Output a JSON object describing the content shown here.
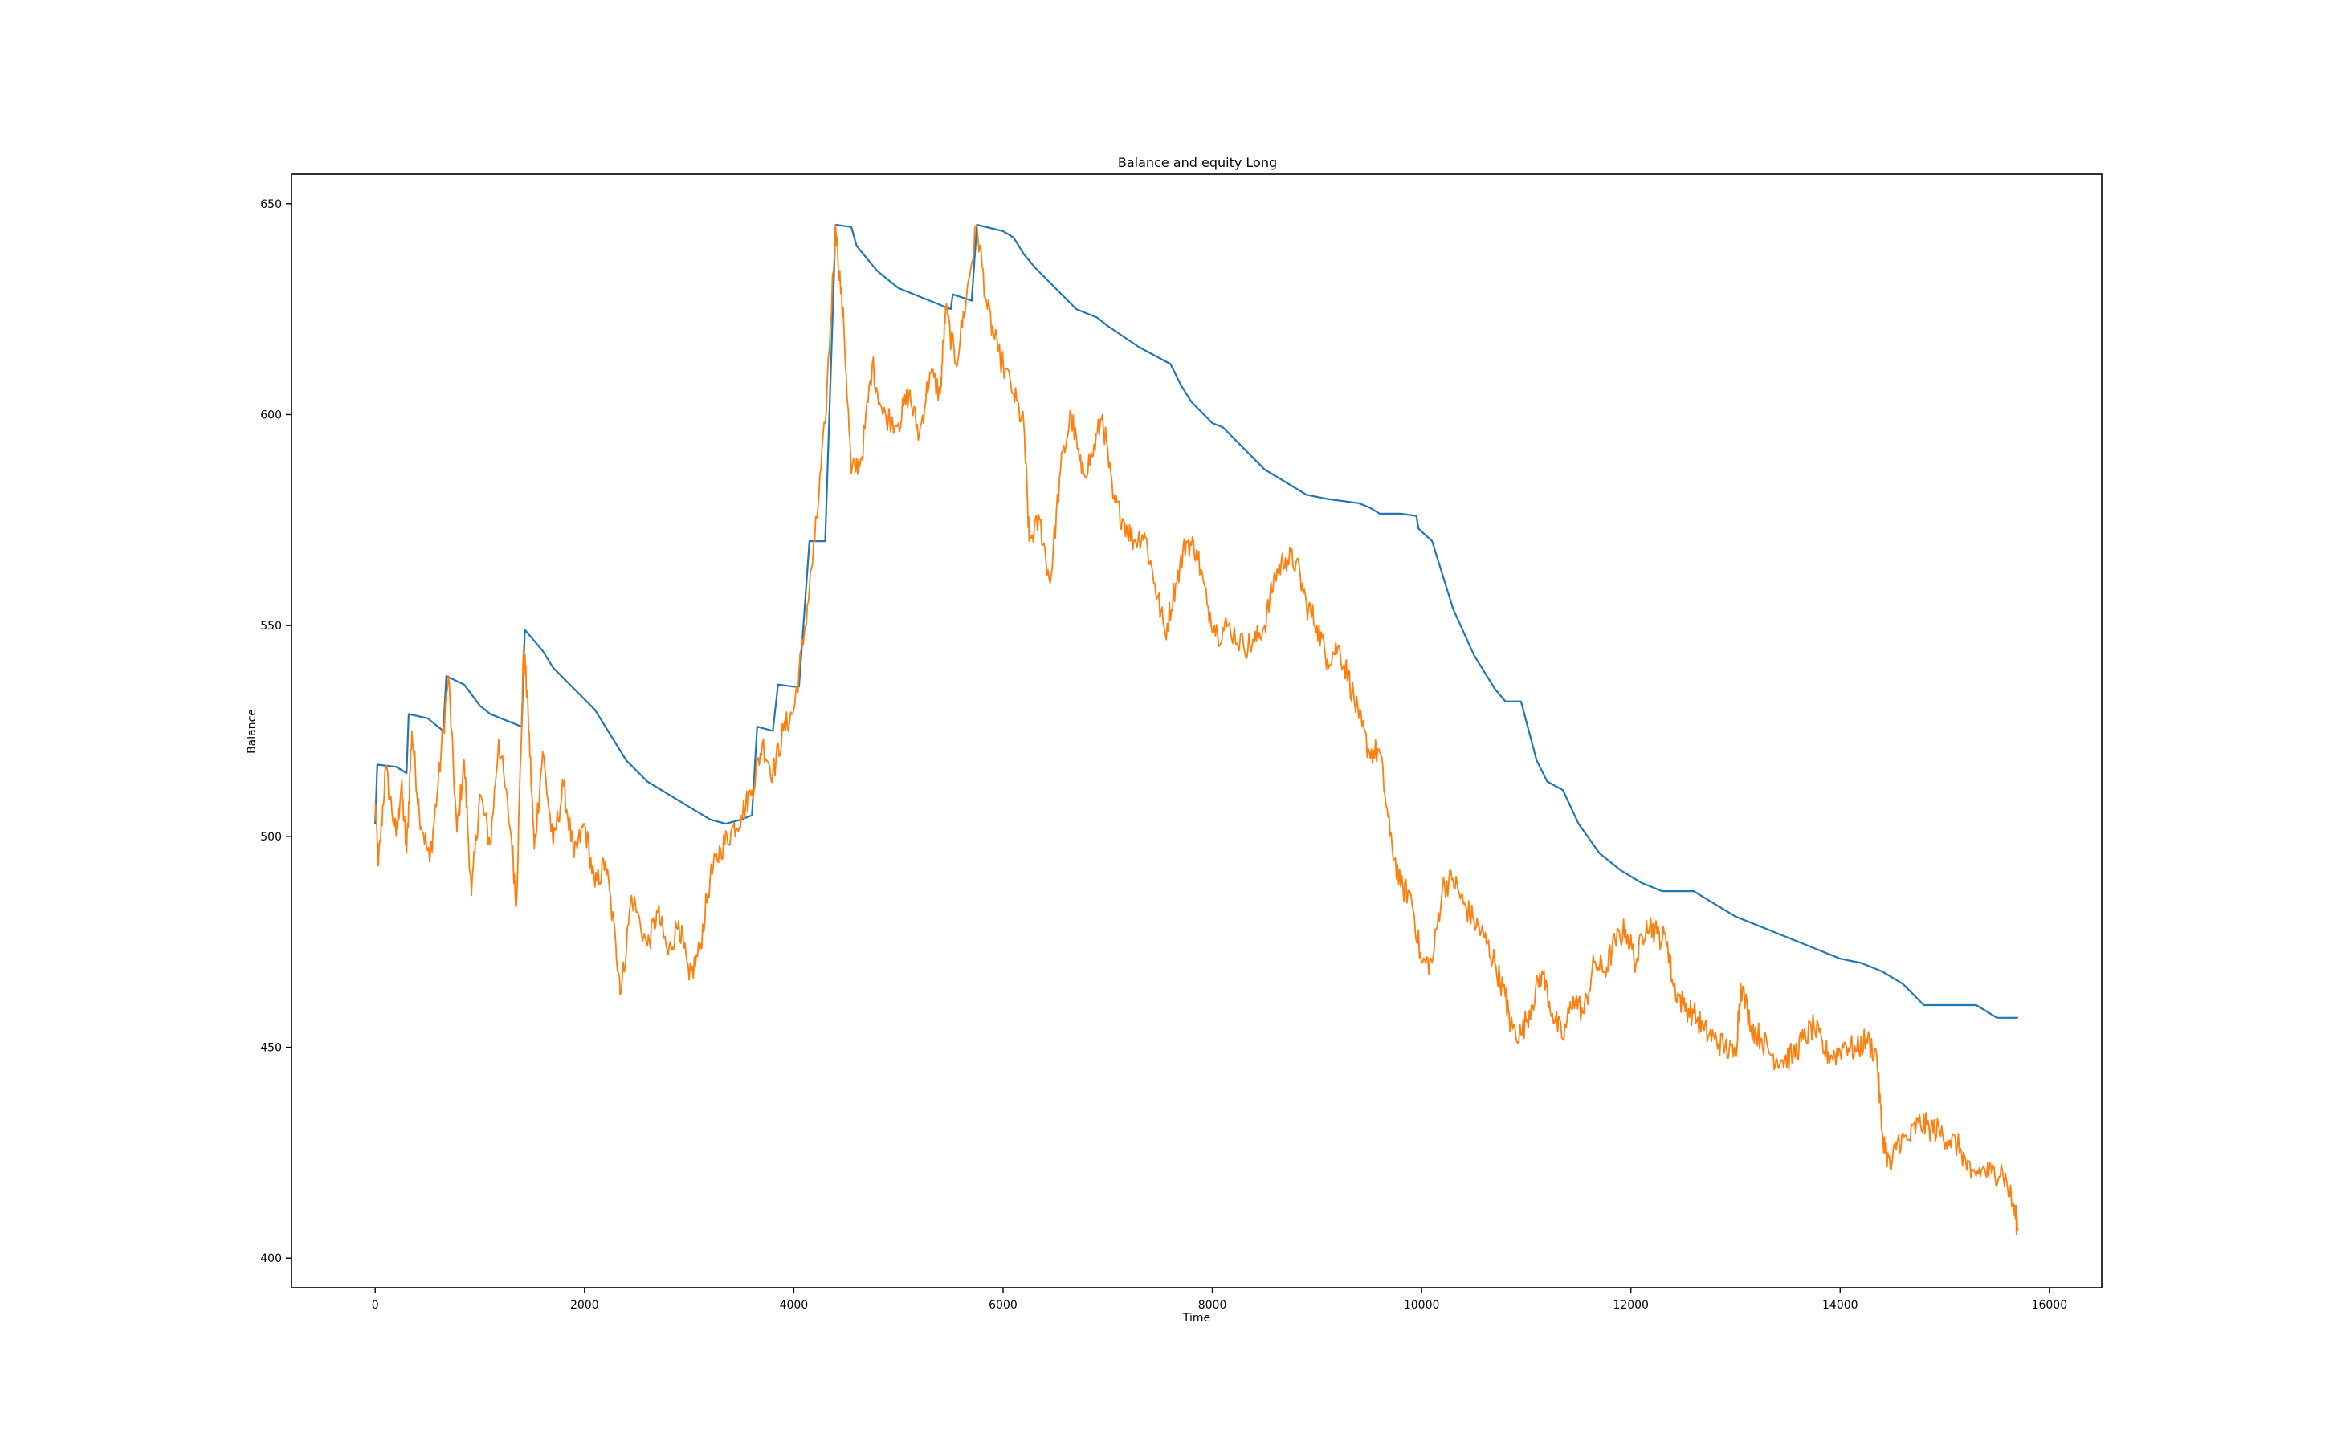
{
  "chart_data": {
    "type": "line",
    "title": "Balance and equity Long",
    "xlabel": "Time",
    "ylabel": "Balance",
    "xlim": [
      -800,
      16500
    ],
    "ylim": [
      393,
      657
    ],
    "x_ticks": [
      0,
      2000,
      4000,
      6000,
      8000,
      10000,
      12000,
      14000,
      16000
    ],
    "y_ticks": [
      400,
      450,
      500,
      550,
      600,
      650
    ],
    "grid": false,
    "legend": "none",
    "series": [
      {
        "color": "#1f77b4",
        "points": [
          [
            0,
            503
          ],
          [
            20,
            517
          ],
          [
            200,
            516.5
          ],
          [
            300,
            515
          ],
          [
            320,
            529
          ],
          [
            500,
            528
          ],
          [
            650,
            525
          ],
          [
            680,
            538
          ],
          [
            850,
            536
          ],
          [
            1000,
            531
          ],
          [
            1100,
            529
          ],
          [
            1400,
            526
          ],
          [
            1430,
            549
          ],
          [
            1600,
            544
          ],
          [
            1700,
            540
          ],
          [
            1900,
            535
          ],
          [
            2100,
            530
          ],
          [
            2250,
            524
          ],
          [
            2400,
            518
          ],
          [
            2600,
            513
          ],
          [
            2800,
            510
          ],
          [
            3000,
            507
          ],
          [
            3200,
            504
          ],
          [
            3350,
            503
          ],
          [
            3500,
            504
          ],
          [
            3600,
            505
          ],
          [
            3650,
            526
          ],
          [
            3800,
            525
          ],
          [
            3850,
            536
          ],
          [
            4000,
            535.5
          ],
          [
            4050,
            535.5
          ],
          [
            4150,
            570
          ],
          [
            4300,
            570
          ],
          [
            4400,
            645
          ],
          [
            4550,
            644.5
          ],
          [
            4600,
            640
          ],
          [
            4700,
            637
          ],
          [
            4800,
            634
          ],
          [
            5000,
            630
          ],
          [
            5200,
            628
          ],
          [
            5400,
            626
          ],
          [
            5500,
            625
          ],
          [
            5520,
            628.5
          ],
          [
            5700,
            627
          ],
          [
            5750,
            645
          ],
          [
            6000,
            643.5
          ],
          [
            6100,
            642
          ],
          [
            6200,
            638
          ],
          [
            6300,
            635
          ],
          [
            6500,
            630
          ],
          [
            6700,
            625
          ],
          [
            6900,
            623
          ],
          [
            7000,
            621
          ],
          [
            7300,
            616
          ],
          [
            7600,
            612
          ],
          [
            7700,
            607
          ],
          [
            7800,
            603
          ],
          [
            8000,
            598
          ],
          [
            8100,
            597
          ],
          [
            8300,
            592
          ],
          [
            8500,
            587
          ],
          [
            8700,
            584
          ],
          [
            8900,
            581
          ],
          [
            9100,
            580
          ],
          [
            9400,
            579
          ],
          [
            9500,
            578
          ],
          [
            9600,
            576.5
          ],
          [
            9800,
            576.5
          ],
          [
            9950,
            576
          ],
          [
            9970,
            573
          ],
          [
            10100,
            570
          ],
          [
            10300,
            554
          ],
          [
            10500,
            543
          ],
          [
            10600,
            539
          ],
          [
            10700,
            535
          ],
          [
            10800,
            532
          ],
          [
            10950,
            532
          ],
          [
            11100,
            518
          ],
          [
            11200,
            513
          ],
          [
            11350,
            511
          ],
          [
            11500,
            503
          ],
          [
            11700,
            496
          ],
          [
            11900,
            492
          ],
          [
            12100,
            489
          ],
          [
            12300,
            487
          ],
          [
            12600,
            487
          ],
          [
            12800,
            484
          ],
          [
            13000,
            481
          ],
          [
            13300,
            478
          ],
          [
            13500,
            476
          ],
          [
            13700,
            474
          ],
          [
            14000,
            471
          ],
          [
            14200,
            470
          ],
          [
            14400,
            468
          ],
          [
            14600,
            465
          ],
          [
            14800,
            460
          ],
          [
            15000,
            460
          ],
          [
            15300,
            460
          ],
          [
            15500,
            457
          ],
          [
            15700,
            457
          ]
        ]
      },
      {
        "color": "#ff7f0e",
        "points": [
          [
            0,
            508
          ],
          [
            30,
            493
          ],
          [
            100,
            516
          ],
          [
            200,
            500
          ],
          [
            250,
            512
          ],
          [
            300,
            496
          ],
          [
            350,
            525
          ],
          [
            420,
            506
          ],
          [
            520,
            494
          ],
          [
            600,
            512
          ],
          [
            700,
            538
          ],
          [
            780,
            501
          ],
          [
            850,
            518
          ],
          [
            920,
            486
          ],
          [
            1000,
            510
          ],
          [
            1100,
            498
          ],
          [
            1180,
            523
          ],
          [
            1300,
            500
          ],
          [
            1350,
            484
          ],
          [
            1420,
            545
          ],
          [
            1460,
            530
          ],
          [
            1520,
            497
          ],
          [
            1600,
            520
          ],
          [
            1700,
            498
          ],
          [
            1800,
            512
          ],
          [
            1900,
            495
          ],
          [
            2000,
            503
          ],
          [
            2100,
            488
          ],
          [
            2200,
            494
          ],
          [
            2300,
            474
          ],
          [
            2350,
            463
          ],
          [
            2450,
            486
          ],
          [
            2600,
            474
          ],
          [
            2700,
            482
          ],
          [
            2800,
            472
          ],
          [
            2900,
            480
          ],
          [
            3000,
            466
          ],
          [
            3100,
            473
          ],
          [
            3200,
            490
          ],
          [
            3300,
            497
          ],
          [
            3400,
            501
          ],
          [
            3500,
            505
          ],
          [
            3600,
            511
          ],
          [
            3700,
            522
          ],
          [
            3800,
            515
          ],
          [
            3900,
            525
          ],
          [
            4000,
            530
          ],
          [
            4100,
            548
          ],
          [
            4200,
            570
          ],
          [
            4300,
            598
          ],
          [
            4400,
            645
          ],
          [
            4480,
            620
          ],
          [
            4550,
            586
          ],
          [
            4650,
            590
          ],
          [
            4750,
            612
          ],
          [
            4850,
            600
          ],
          [
            5000,
            598
          ],
          [
            5100,
            605
          ],
          [
            5200,
            595
          ],
          [
            5300,
            610
          ],
          [
            5400,
            605
          ],
          [
            5450,
            625
          ],
          [
            5550,
            612
          ],
          [
            5650,
            628
          ],
          [
            5750,
            645
          ],
          [
            5850,
            625
          ],
          [
            5950,
            615
          ],
          [
            6100,
            605
          ],
          [
            6200,
            597
          ],
          [
            6250,
            570
          ],
          [
            6350,
            575
          ],
          [
            6450,
            560
          ],
          [
            6550,
            587
          ],
          [
            6650,
            600
          ],
          [
            6750,
            586
          ],
          [
            6850,
            590
          ],
          [
            6950,
            600
          ],
          [
            7050,
            580
          ],
          [
            7150,
            575
          ],
          [
            7250,
            570
          ],
          [
            7350,
            572
          ],
          [
            7450,
            560
          ],
          [
            7550,
            548
          ],
          [
            7650,
            560
          ],
          [
            7750,
            570
          ],
          [
            7850,
            568
          ],
          [
            7950,
            555
          ],
          [
            8050,
            548
          ],
          [
            8150,
            550
          ],
          [
            8300,
            545
          ],
          [
            8400,
            546
          ],
          [
            8500,
            550
          ],
          [
            8600,
            562
          ],
          [
            8700,
            566
          ],
          [
            8800,
            565
          ],
          [
            8900,
            555
          ],
          [
            9000,
            550
          ],
          [
            9100,
            542
          ],
          [
            9200,
            545
          ],
          [
            9300,
            538
          ],
          [
            9400,
            528
          ],
          [
            9500,
            520
          ],
          [
            9600,
            520
          ],
          [
            9700,
            500
          ],
          [
            9800,
            488
          ],
          [
            9900,
            486
          ],
          [
            10000,
            470
          ],
          [
            10100,
            470
          ],
          [
            10200,
            488
          ],
          [
            10300,
            490
          ],
          [
            10400,
            484
          ],
          [
            10500,
            480
          ],
          [
            10600,
            476
          ],
          [
            10700,
            470
          ],
          [
            10800,
            462
          ],
          [
            10850,
            455
          ],
          [
            10950,
            453
          ],
          [
            11050,
            460
          ],
          [
            11150,
            468
          ],
          [
            11250,
            458
          ],
          [
            11350,
            452
          ],
          [
            11450,
            462
          ],
          [
            11550,
            458
          ],
          [
            11650,
            470
          ],
          [
            11750,
            468
          ],
          [
            11850,
            475
          ],
          [
            11950,
            478
          ],
          [
            12050,
            470
          ],
          [
            12150,
            480
          ],
          [
            12250,
            477
          ],
          [
            12350,
            475
          ],
          [
            12400,
            465
          ],
          [
            12500,
            460
          ],
          [
            12600,
            458
          ],
          [
            12700,
            454
          ],
          [
            12800,
            452
          ],
          [
            12900,
            450
          ],
          [
            13000,
            448
          ],
          [
            13050,
            465
          ],
          [
            13150,
            455
          ],
          [
            13250,
            452
          ],
          [
            13350,
            448
          ],
          [
            13450,
            447
          ],
          [
            13550,
            448
          ],
          [
            13650,
            452
          ],
          [
            13750,
            455
          ],
          [
            13850,
            449
          ],
          [
            13950,
            448
          ],
          [
            14050,
            451
          ],
          [
            14150,
            449
          ],
          [
            14250,
            452
          ],
          [
            14350,
            448
          ],
          [
            14400,
            430
          ],
          [
            14480,
            421
          ],
          [
            14550,
            428
          ],
          [
            14650,
            428
          ],
          [
            14750,
            432
          ],
          [
            14850,
            431
          ],
          [
            14950,
            430
          ],
          [
            15050,
            428
          ],
          [
            15150,
            426
          ],
          [
            15250,
            419
          ],
          [
            15350,
            421
          ],
          [
            15450,
            420
          ],
          [
            15550,
            421
          ],
          [
            15650,
            413
          ],
          [
            15700,
            407
          ]
        ]
      }
    ]
  }
}
